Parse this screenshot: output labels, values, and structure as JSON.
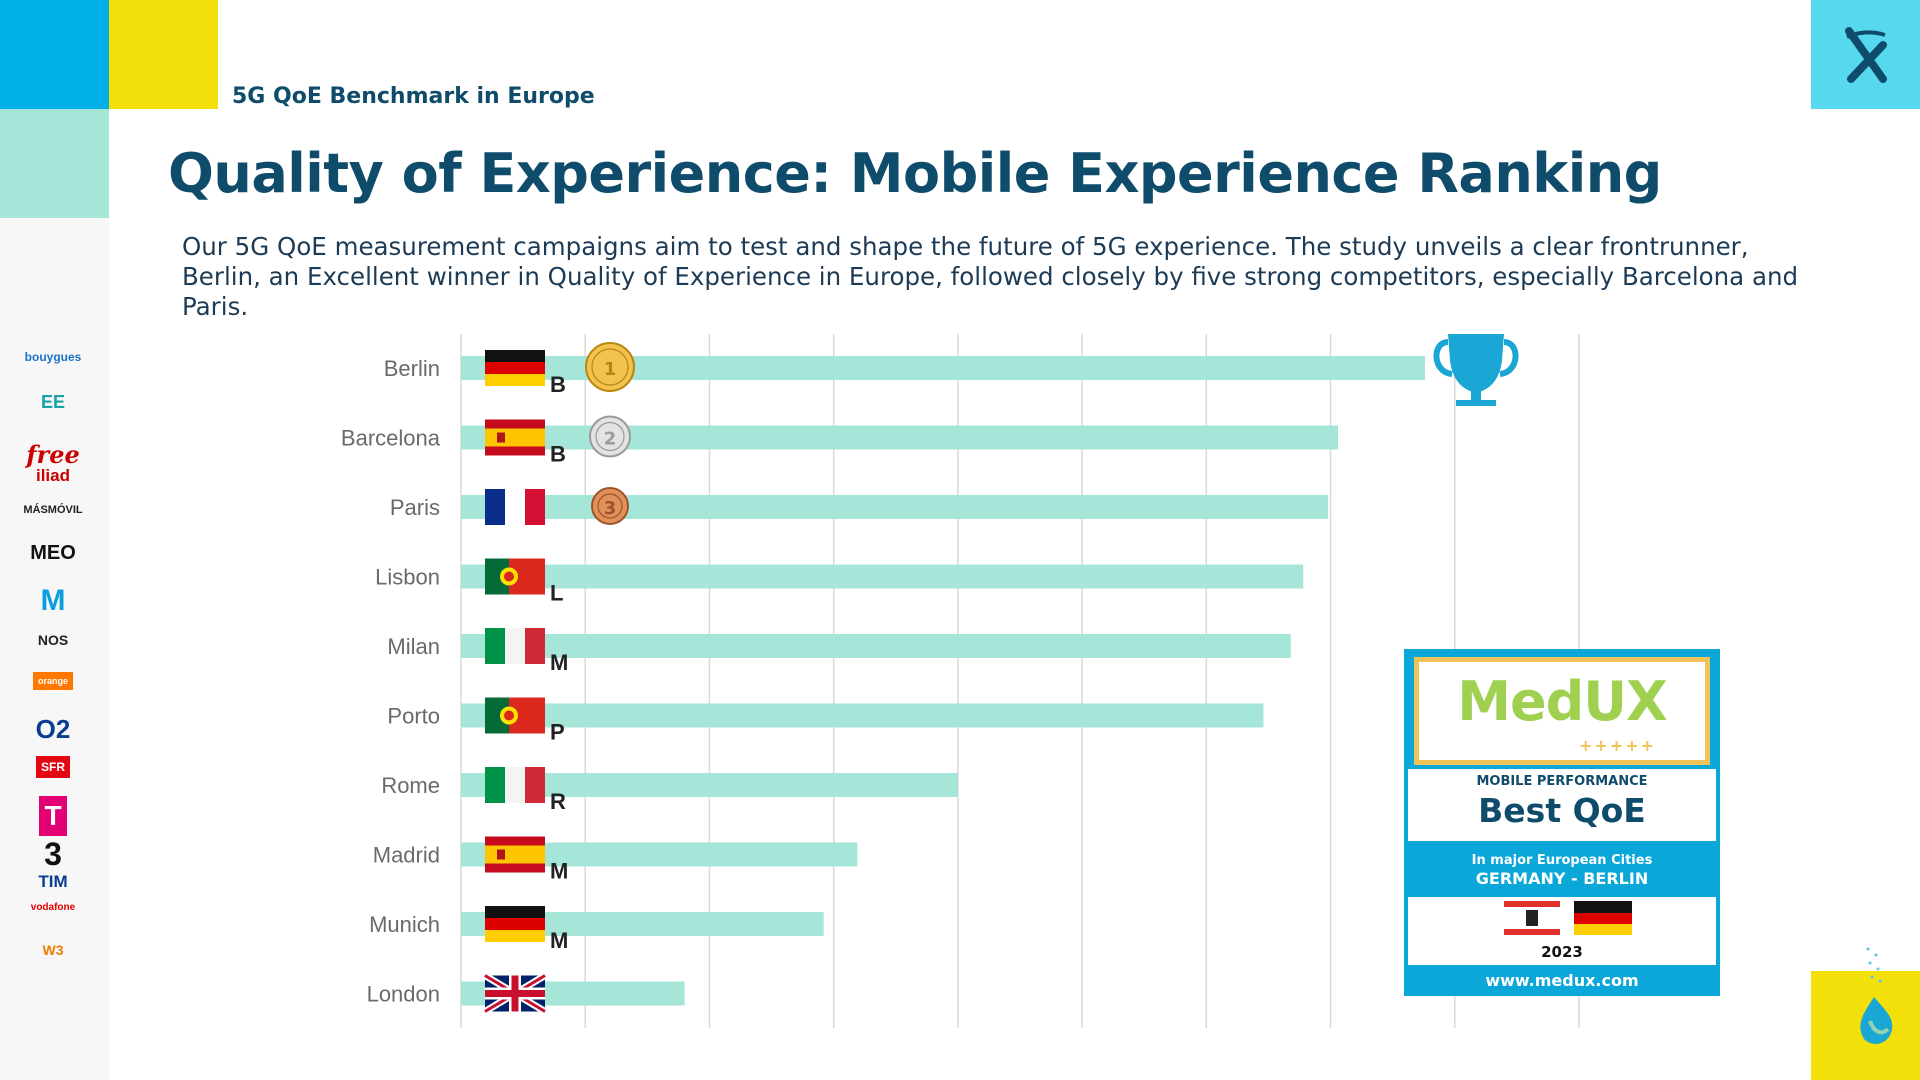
{
  "header": {
    "subtitle": "5G QoE Benchmark in Europe",
    "title": "Quality of Experience: Mobile Experience Ranking",
    "description": "Our 5G QoE measurement campaigns aim to test and shape the future of 5G experience. The study unveils a clear frontrunner, Berlin, an Excellent winner in Quality of Experience in Europe, followed closely by five strong competitors, especially Barcelona and Paris."
  },
  "colors": {
    "title": "#0f4c6b",
    "bar": "#a5e6d8",
    "gridline": "#d9d9d9",
    "accent_cyan": "#00b0e6",
    "accent_yellow": "#f3e00a",
    "trophy": "#1aa7d6",
    "badge_blue": "#0aa7d8"
  },
  "sidebar": {
    "operators": [
      {
        "name": "bouygues",
        "label": "bouygues",
        "color": "#1a73c5"
      },
      {
        "name": "ee",
        "label": "EE",
        "color": "#17a3a3"
      },
      {
        "name": "free",
        "label": "free",
        "color": "#cc0000"
      },
      {
        "name": "iliad",
        "label": "iliad",
        "color": "#cc0000"
      },
      {
        "name": "masmovil",
        "label": "MÁSMÓVIL",
        "color": "#222222"
      },
      {
        "name": "meo",
        "label": "MEO",
        "color": "#111111"
      },
      {
        "name": "movistar",
        "label": "M",
        "color": "#0b9fe0"
      },
      {
        "name": "nos",
        "label": "NOS",
        "color": "#222222"
      },
      {
        "name": "orange",
        "label": "orange",
        "color": "#ff7900"
      },
      {
        "name": "o2",
        "label": "O2",
        "color": "#0a3d91"
      },
      {
        "name": "sfr",
        "label": "SFR",
        "color": "#e30613"
      },
      {
        "name": "telekom",
        "label": "T",
        "color": "#e20074"
      },
      {
        "name": "three",
        "label": "3",
        "color": "#111111"
      },
      {
        "name": "tim",
        "label": "TIM",
        "color": "#0a3d91"
      },
      {
        "name": "vodafone",
        "label": "vodafone",
        "color": "#e60000"
      },
      {
        "name": "windtre",
        "label": "W3",
        "color": "#f07c00"
      }
    ]
  },
  "chart_data": {
    "type": "bar",
    "orientation": "horizontal",
    "title": "",
    "xlabel": "",
    "ylabel": "",
    "xlim": [
      0,
      9
    ],
    "grid": true,
    "legend": "none",
    "categories": [
      "Berlin",
      "Barcelona",
      "Paris",
      "Lisbon",
      "Milan",
      "Porto",
      "Rome",
      "Madrid",
      "Munich",
      "London"
    ],
    "values": [
      7.76,
      7.06,
      6.98,
      6.78,
      6.68,
      6.46,
      4.0,
      3.19,
      2.92,
      1.8
    ],
    "country_flags": [
      "germany",
      "spain",
      "france",
      "portugal",
      "italy",
      "portugal",
      "italy",
      "spain",
      "germany",
      "uk"
    ],
    "initials": [
      "B",
      "B",
      "",
      "L",
      "M",
      "P",
      "R",
      "M",
      "M",
      ""
    ],
    "medals": [
      {
        "rank": "1",
        "color": "gold"
      },
      {
        "rank": "2",
        "color": "silver"
      },
      {
        "rank": "3",
        "color": "bronze"
      }
    ]
  },
  "badge": {
    "brand": "MedUX",
    "plus": "+++++",
    "category": "MOBILE PERFORMANCE",
    "award": "Best QoE",
    "scope": "In major European Cities",
    "location": "GERMANY - BERLIN",
    "year": "2023",
    "url": "www.medux.com"
  }
}
